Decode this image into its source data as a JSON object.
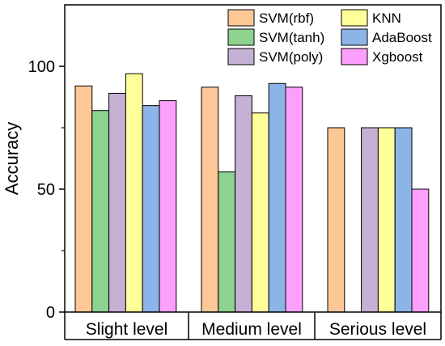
{
  "chart_data": {
    "type": "bar",
    "title": "",
    "xlabel": "",
    "ylabel": "Accuracy",
    "ylim": [
      0,
      125
    ],
    "yticks": [
      0,
      50,
      100
    ],
    "grid": false,
    "legend_position": "top-right",
    "categories": [
      "Slight level",
      "Medium level",
      "Serious level"
    ],
    "series": [
      {
        "name": "SVM(rbf)",
        "color": "#FDC896",
        "values": [
          92,
          91.5,
          75
        ]
      },
      {
        "name": "SVM(tanh)",
        "color": "#8DD28F",
        "values": [
          82,
          57,
          0
        ]
      },
      {
        "name": "SVM(poly)",
        "color": "#C5B1D4",
        "values": [
          89,
          88,
          75
        ]
      },
      {
        "name": "KNN",
        "color": "#FFFF99",
        "values": [
          97,
          81,
          75
        ]
      },
      {
        "name": "AdaBoost",
        "color": "#8DB4E8",
        "values": [
          84,
          93,
          75
        ]
      },
      {
        "name": "Xgboost",
        "color": "#FDA0FD",
        "values": [
          86,
          91.5,
          50
        ]
      }
    ]
  }
}
